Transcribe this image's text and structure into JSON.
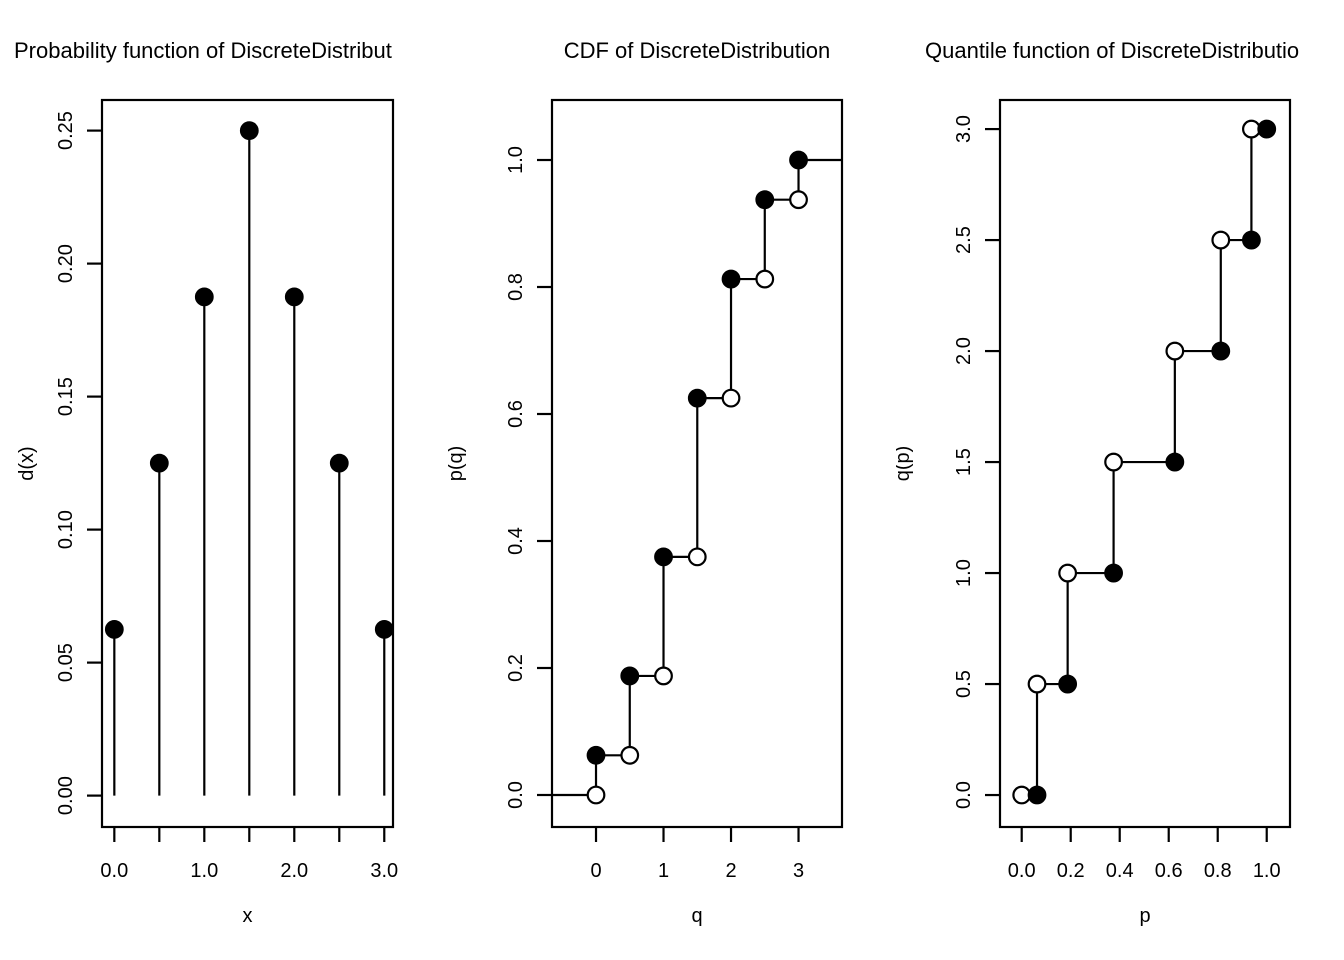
{
  "figure": {
    "background": "#ffffff",
    "foreground": "#000000"
  },
  "chart_data": [
    {
      "type": "stem",
      "title": "Probability function of DiscreteDistribut",
      "xlabel": "x",
      "ylabel": "d(x)",
      "x": [
        0,
        0.5,
        1,
        1.5,
        2,
        2.5,
        3
      ],
      "y": [
        0.0625,
        0.125,
        0.1875,
        0.25,
        0.1875,
        0.125,
        0.0625
      ],
      "xticks": {
        "values": [
          0,
          0.5,
          1,
          1.5,
          2,
          2.5,
          3
        ],
        "labels": [
          "0.0",
          "",
          "1.0",
          "",
          "2.0",
          "",
          "3.0"
        ]
      },
      "yticks": {
        "values": [
          0,
          0.05,
          0.1,
          0.15,
          0.2,
          0.25
        ],
        "labels": [
          "0.00",
          "0.05",
          "0.10",
          "0.15",
          "0.20",
          "0.25"
        ]
      },
      "xlim": [
        -0.137,
        3.097
      ],
      "ylim": [
        -0.0118,
        0.2615
      ],
      "grid": false,
      "legend": null
    },
    {
      "type": "step-cdf",
      "title": "CDF of DiscreteDistribution",
      "xlabel": "q",
      "ylabel": "p(q)",
      "x": [
        0,
        0.5,
        1,
        1.5,
        2,
        2.5,
        3
      ],
      "cdf": [
        0.0625,
        0.1875,
        0.375,
        0.625,
        0.8125,
        0.9375,
        1.0
      ],
      "xticks": {
        "values": [
          0,
          1,
          2,
          3
        ],
        "labels": [
          "0",
          "1",
          "2",
          "3"
        ]
      },
      "yticks": {
        "values": [
          0,
          0.2,
          0.4,
          0.6,
          0.8,
          1.0
        ],
        "labels": [
          "0.0",
          "0.2",
          "0.4",
          "0.6",
          "0.8",
          "1.0"
        ]
      },
      "xlim": [
        -0.652,
        3.644
      ],
      "ylim": [
        -0.0504,
        1.0945
      ],
      "tails": true,
      "grid": false,
      "legend": null
    },
    {
      "type": "step-quantile",
      "title": "Quantile function of DiscreteDistributio",
      "xlabel": "p",
      "ylabel": "q(p)",
      "p": [
        0.0625,
        0.1875,
        0.375,
        0.625,
        0.8125,
        0.9375,
        1.0
      ],
      "q": [
        0,
        0.5,
        1,
        1.5,
        2,
        2.5,
        3
      ],
      "p_start": 0,
      "xticks": {
        "values": [
          0,
          0.2,
          0.4,
          0.6,
          0.8,
          1.0
        ],
        "labels": [
          "0.0",
          "0.2",
          "0.4",
          "0.6",
          "0.8",
          "1.0"
        ]
      },
      "yticks": {
        "values": [
          0,
          0.5,
          1,
          1.5,
          2,
          2.5,
          3
        ],
        "labels": [
          "0.0",
          "0.5",
          "1.0",
          "1.5",
          "2.0",
          "2.5",
          "3.0"
        ]
      },
      "xlim": [
        -0.0886,
        1.095
      ],
      "ylim": [
        -0.144,
        3.131
      ],
      "grid": false,
      "legend": null
    }
  ]
}
